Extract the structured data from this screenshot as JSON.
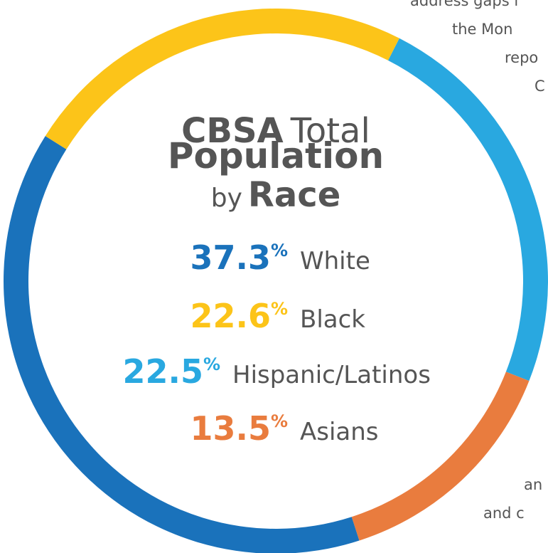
{
  "chart_data": {
    "type": "donut",
    "title": {
      "line1_bold": "CBSA",
      "line1_regular": "Total",
      "line2_bold": "Population",
      "line3_regular": "by",
      "line3_bold": "Race"
    },
    "categories": [
      "White",
      "Black",
      "Hispanic/Latinos",
      "Asians"
    ],
    "values": [
      37.3,
      22.6,
      22.5,
      13.5
    ],
    "value_labels": [
      "37.3%",
      "22.6%",
      "22.5%",
      "13.5%"
    ],
    "colors": [
      "#1a72bb",
      "#fcc419",
      "#29a8e0",
      "#e97c3e"
    ],
    "background_text": [
      "address gaps i",
      "the Mon",
      "repo",
      "C",
      "an",
      "and c"
    ]
  }
}
